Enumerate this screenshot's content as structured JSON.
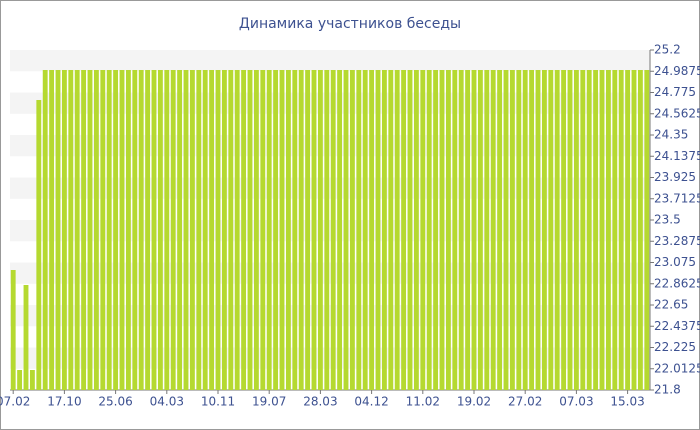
{
  "chart_data": {
    "type": "bar",
    "title": "Динамика участников беседы",
    "categories": [
      "07.02",
      null,
      null,
      null,
      null,
      null,
      null,
      null,
      "17.10",
      null,
      null,
      null,
      null,
      null,
      null,
      null,
      "25.06",
      null,
      null,
      null,
      null,
      null,
      null,
      null,
      "04.03",
      null,
      null,
      null,
      null,
      null,
      null,
      null,
      "10.11",
      null,
      null,
      null,
      null,
      null,
      null,
      null,
      "19.07",
      null,
      null,
      null,
      null,
      null,
      null,
      null,
      "28.03",
      null,
      null,
      null,
      null,
      null,
      null,
      null,
      "04.12",
      null,
      null,
      null,
      null,
      null,
      null,
      null,
      "11.02",
      null,
      null,
      null,
      null,
      null,
      null,
      null,
      "19.02",
      null,
      null,
      null,
      null,
      null,
      null,
      null,
      "27.02",
      null,
      null,
      null,
      null,
      null,
      null,
      null,
      "07.03",
      null,
      null,
      null,
      null,
      null,
      null,
      null,
      "15.03",
      null,
      null,
      null
    ],
    "values": [
      23,
      22,
      22.85,
      22,
      24.7,
      25,
      25,
      25,
      25,
      25,
      25,
      25,
      25,
      25,
      25,
      25,
      25,
      25,
      25,
      25,
      25,
      25,
      25,
      25,
      25,
      25,
      25,
      25,
      25,
      25,
      25,
      25,
      25,
      25,
      25,
      25,
      25,
      25,
      25,
      25,
      25,
      25,
      25,
      25,
      25,
      25,
      25,
      25,
      25,
      25,
      25,
      25,
      25,
      25,
      25,
      25,
      25,
      25,
      25,
      25,
      25,
      25,
      25,
      25,
      25,
      25,
      25,
      25,
      25,
      25,
      25,
      25,
      25,
      25,
      25,
      25,
      25,
      25,
      25,
      25,
      25,
      25,
      25,
      25,
      25,
      25,
      25,
      25,
      25,
      25,
      25,
      25,
      25,
      25,
      25,
      25,
      25,
      25,
      25,
      25
    ],
    "color": "#b5d930",
    "ylim": [
      21.8,
      25.2
    ],
    "yticks": [
      21.8,
      22.0125,
      22.225,
      22.4375,
      22.65,
      22.8625,
      23.075,
      23.2875,
      23.5,
      23.7125,
      23.925,
      24.1375,
      24.35,
      24.5625,
      24.775,
      24.9875,
      25.2
    ],
    "grid": true
  }
}
